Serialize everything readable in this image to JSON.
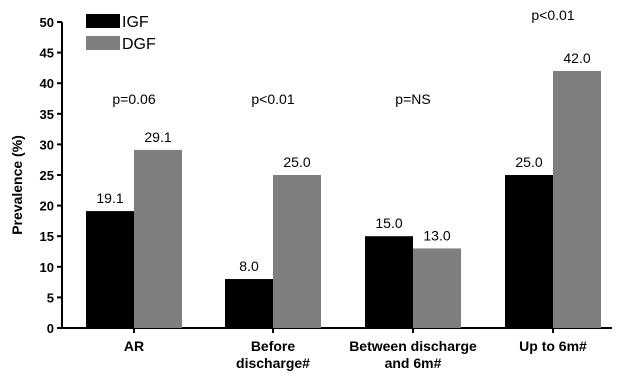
{
  "chart_data": {
    "type": "bar",
    "ylabel": "Prevalence (%)",
    "xlabel": "",
    "ylim": [
      0,
      50
    ],
    "yticks": [
      "0",
      "5",
      "10",
      "15",
      "20",
      "25",
      "30",
      "35",
      "40",
      "45",
      "50"
    ],
    "categories": [
      [
        "AR"
      ],
      [
        "Before",
        "discharge#"
      ],
      [
        "Between discharge",
        "and 6m#"
      ],
      [
        "Up to 6m#"
      ]
    ],
    "series": [
      {
        "name": "IGF",
        "color": "#000000",
        "values": [
          19.1,
          8.0,
          15.0,
          25.0
        ],
        "labels": [
          "19.1",
          "8.0",
          "15.0",
          "25.0"
        ]
      },
      {
        "name": "DGF",
        "color": "#7f7f7f",
        "values": [
          29.1,
          25.0,
          13.0,
          42.0
        ],
        "labels": [
          "29.1",
          "25.0",
          "13.0",
          "42.0"
        ]
      }
    ],
    "p_values": [
      "p=0.06",
      "p<0.01",
      "p=NS",
      "p<0.01"
    ],
    "legend_position": "top-left",
    "grid": false
  }
}
